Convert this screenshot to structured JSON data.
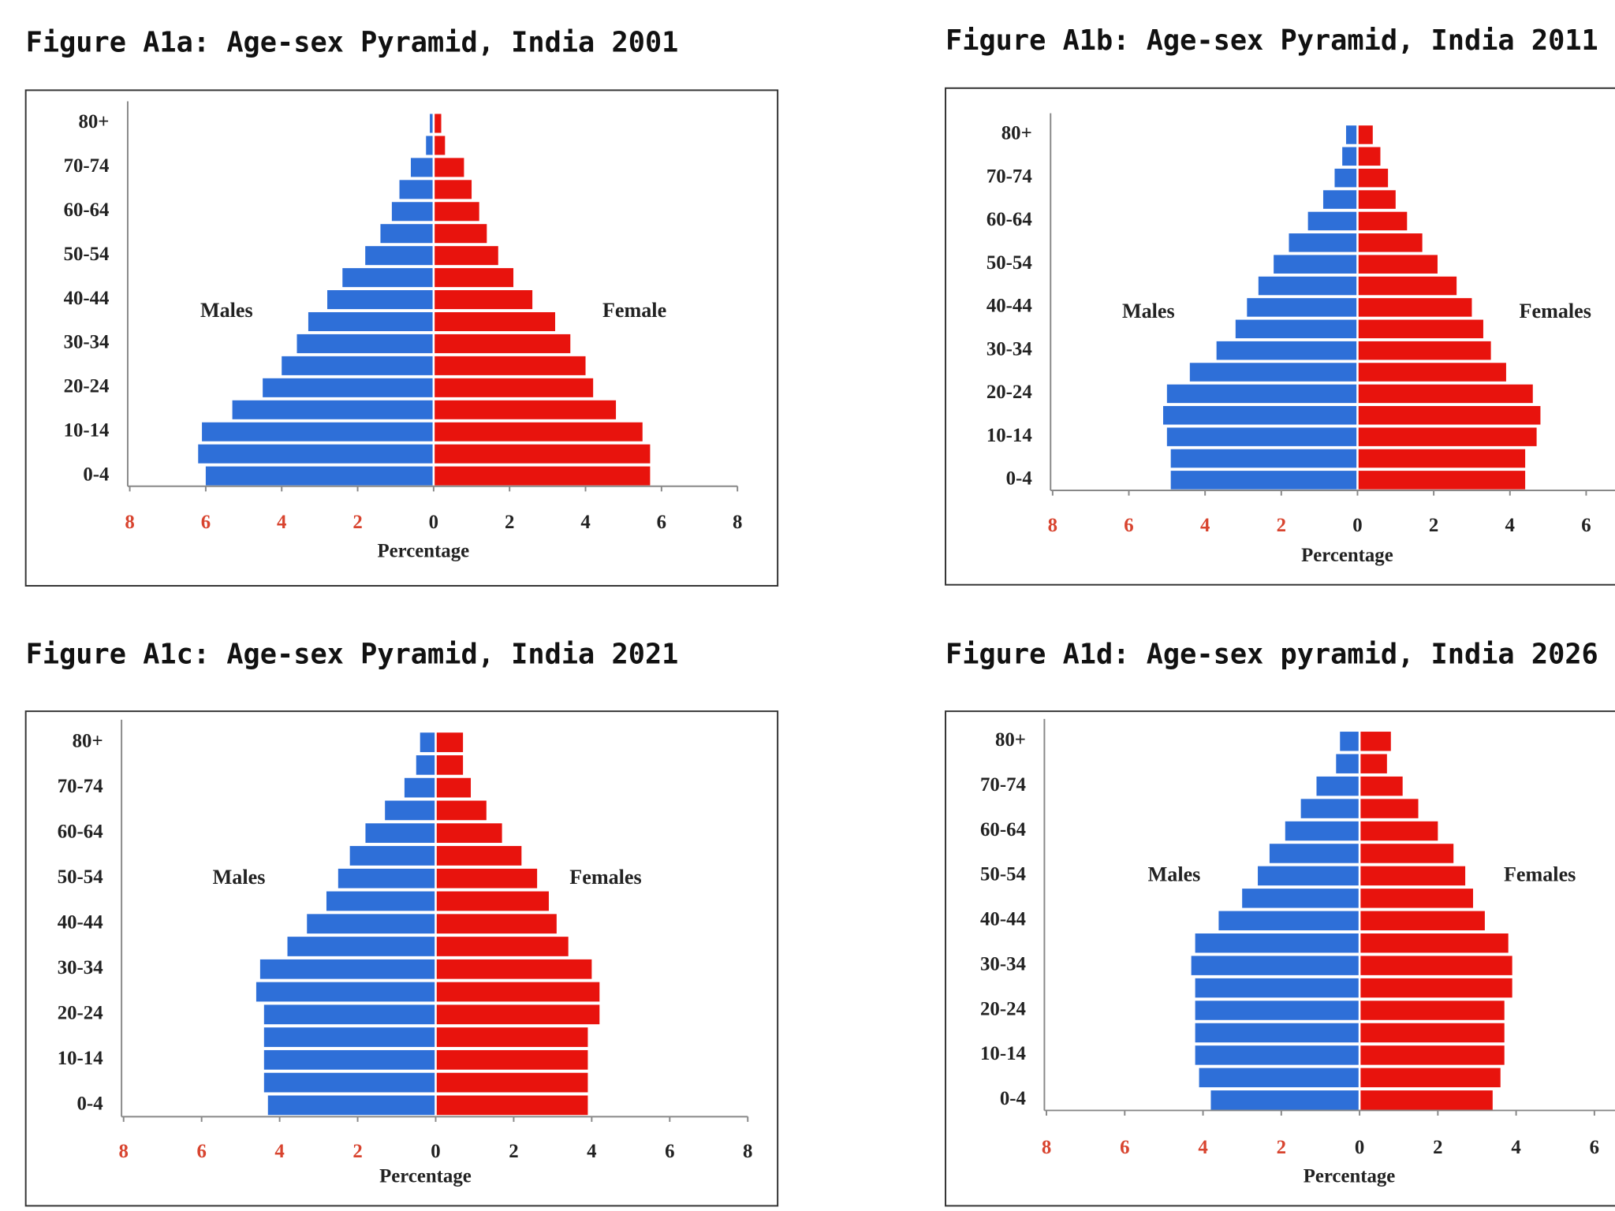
{
  "chart_data": [
    {
      "type": "pyramid",
      "title": "Figure A1a: Age-sex Pyramid, India 2001",
      "x_label": "Percentage",
      "categories": [
        "0-4",
        null,
        "10-14",
        null,
        "20-24",
        null,
        "30-34",
        null,
        "40-44",
        null,
        "50-54",
        null,
        "60-64",
        null,
        "70-74",
        null,
        "80+"
      ],
      "series": [
        {
          "name": "Males",
          "color": "#2e6fd8",
          "side": "left",
          "values": [
            6.0,
            6.2,
            6.1,
            5.3,
            4.5,
            4.0,
            3.6,
            3.3,
            2.8,
            2.4,
            1.8,
            1.4,
            1.1,
            0.9,
            0.6,
            0.2,
            0.1
          ]
        },
        {
          "name": "Female",
          "color": "#e8130d",
          "side": "right",
          "values": [
            5.7,
            5.7,
            5.5,
            4.8,
            4.2,
            4.0,
            3.6,
            3.2,
            2.6,
            2.1,
            1.7,
            1.4,
            1.2,
            1.0,
            0.8,
            0.3,
            0.2
          ]
        }
      ],
      "xlim": [
        -8,
        8
      ],
      "xticks": [
        {
          "value": -8,
          "label": "8"
        },
        {
          "value": -6,
          "label": "6"
        },
        {
          "value": -4,
          "label": "4"
        },
        {
          "value": -2,
          "label": "2"
        },
        0,
        2,
        4,
        6,
        8
      ]
    },
    {
      "type": "pyramid",
      "title": "Figure A1b: Age-sex Pyramid, India 2011",
      "x_label": "Percentage",
      "categories": [
        "0-4",
        null,
        "10-14",
        null,
        "20-24",
        null,
        "30-34",
        null,
        "40-44",
        null,
        "50-54",
        null,
        "60-64",
        null,
        "70-74",
        null,
        "80+"
      ],
      "series": [
        {
          "name": "Males",
          "color": "#2e6fd8",
          "side": "left",
          "values": [
            4.9,
            4.9,
            5.0,
            5.1,
            5.0,
            4.4,
            3.7,
            3.2,
            2.9,
            2.6,
            2.2,
            1.8,
            1.3,
            0.9,
            0.6,
            0.4,
            0.3
          ]
        },
        {
          "name": "Females",
          "color": "#e8130d",
          "side": "right",
          "values": [
            4.4,
            4.4,
            4.7,
            4.8,
            4.6,
            3.9,
            3.5,
            3.3,
            3.0,
            2.6,
            2.1,
            1.7,
            1.3,
            1.0,
            0.8,
            0.6,
            0.4
          ]
        }
      ],
      "xlim": [
        -8,
        8
      ],
      "xticks": [
        {
          "value": -8,
          "label": "8"
        },
        {
          "value": -6,
          "label": "6"
        },
        {
          "value": -4,
          "label": "4"
        },
        {
          "value": -2,
          "label": "2"
        },
        0,
        2,
        4,
        6
      ]
    },
    {
      "type": "pyramid",
      "title": "Figure A1c: Age-sex Pyramid, India 2021",
      "x_label": "Percentage",
      "categories": [
        "0-4",
        null,
        "10-14",
        null,
        "20-24",
        null,
        "30-34",
        null,
        "40-44",
        null,
        "50-54",
        null,
        "60-64",
        null,
        "70-74",
        null,
        "80+"
      ],
      "series": [
        {
          "name": "Males",
          "color": "#2e6fd8",
          "side": "left",
          "values": [
            4.3,
            4.4,
            4.4,
            4.4,
            4.4,
            4.6,
            4.5,
            3.8,
            3.3,
            2.8,
            2.5,
            2.2,
            1.8,
            1.3,
            0.8,
            0.5,
            0.4
          ]
        },
        {
          "name": "Females",
          "color": "#e8130d",
          "side": "right",
          "values": [
            3.9,
            3.9,
            3.9,
            3.9,
            4.2,
            4.2,
            4.0,
            3.4,
            3.1,
            2.9,
            2.6,
            2.2,
            1.7,
            1.3,
            0.9,
            0.7,
            0.7
          ]
        }
      ],
      "xlim": [
        -8,
        8
      ],
      "xticks": [
        {
          "value": -8,
          "label": "8"
        },
        {
          "value": -6,
          "label": "6"
        },
        {
          "value": -4,
          "label": "4"
        },
        {
          "value": -2,
          "label": "2"
        },
        0,
        2,
        4,
        6,
        8
      ]
    },
    {
      "type": "pyramid",
      "title": "Figure A1d: Age-sex pyramid, India 2026",
      "x_label": "Percentage",
      "categories": [
        "0-4",
        null,
        "10-14",
        null,
        "20-24",
        null,
        "30-34",
        null,
        "40-44",
        null,
        "50-54",
        null,
        "60-64",
        null,
        "70-74",
        null,
        "80+"
      ],
      "series": [
        {
          "name": "Males",
          "color": "#2e6fd8",
          "side": "left",
          "values": [
            3.8,
            4.1,
            4.2,
            4.2,
            4.2,
            4.2,
            4.3,
            4.2,
            3.6,
            3.0,
            2.6,
            2.3,
            1.9,
            1.5,
            1.1,
            0.6,
            0.5
          ]
        },
        {
          "name": "Females",
          "color": "#e8130d",
          "side": "right",
          "values": [
            3.4,
            3.6,
            3.7,
            3.7,
            3.7,
            3.9,
            3.9,
            3.8,
            3.2,
            2.9,
            2.7,
            2.4,
            2.0,
            1.5,
            1.1,
            0.7,
            0.8
          ]
        }
      ],
      "xlim": [
        -8,
        8
      ],
      "xticks": [
        {
          "value": -8,
          "label": "8"
        },
        {
          "value": -6,
          "label": "6"
        },
        {
          "value": -4,
          "label": "4"
        },
        {
          "value": -2,
          "label": "2"
        },
        0,
        2,
        4,
        6
      ]
    }
  ]
}
